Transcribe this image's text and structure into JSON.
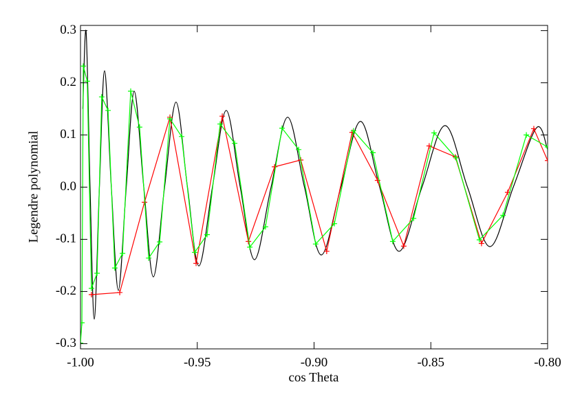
{
  "chart_data": {
    "type": "line",
    "xlabel": "cos Theta",
    "ylabel": "Legendre polynomial",
    "xlim": [
      -1.0,
      -0.8
    ],
    "ylim": [
      -0.31,
      0.31
    ],
    "xticks": [
      {
        "value": -1.0,
        "label": "-1.00"
      },
      {
        "value": -0.95,
        "label": "-0.95"
      },
      {
        "value": -0.9,
        "label": "-0.90"
      },
      {
        "value": -0.85,
        "label": "-0.85"
      },
      {
        "value": -0.8,
        "label": "-0.80"
      }
    ],
    "yticks": [
      -0.3,
      -0.2,
      -0.1,
      {
        "value": 0,
        "label": "0.0"
      },
      0.1,
      0.2,
      0.3
    ],
    "series": [
      {
        "color": "#000000",
        "markers": false,
        "x": [
          -0.999,
          -0.9976,
          -0.9959,
          -0.9941,
          -0.9919,
          -0.9897,
          -0.9868,
          -0.9838,
          -0.9804,
          -0.977,
          -0.9729,
          -0.9688,
          -0.964,
          -0.9591,
          -0.9542,
          -0.9493,
          -0.9435,
          -0.9376,
          -0.9316,
          -0.9255,
          -0.9184,
          -0.9113,
          -0.9041,
          -0.8969,
          -0.8885,
          -0.8801,
          -0.8719,
          -0.8636,
          -0.8538,
          -0.8439,
          -0.8343,
          -0.8247,
          -0.8147,
          -0.8047,
          -0.8
        ],
        "values": [
          0.15,
          0.298,
          0,
          -0.253,
          0,
          0.223,
          0,
          -0.198,
          0,
          0.184,
          0,
          -0.172,
          0,
          0.163,
          0,
          -0.151,
          0,
          0.147,
          0,
          -0.139,
          0,
          0.134,
          0,
          -0.13,
          0,
          0.126,
          0,
          -0.123,
          0,
          0.118,
          0,
          -0.114,
          0,
          0.114,
          0.072
        ]
      },
      {
        "color": "#ff0000",
        "markers": true,
        "x": [
          -0.9953,
          -0.9832,
          -0.9726,
          -0.9617,
          -0.9505,
          -0.9393,
          -0.9281,
          -0.9169,
          -0.9057,
          -0.8946,
          -0.8837,
          -0.8728,
          -0.8616,
          -0.8507,
          -0.8395,
          -0.8283,
          -0.8171,
          -0.8059,
          -0.8
        ],
        "values": [
          -0.206,
          -0.202,
          -0.029,
          0.134,
          -0.146,
          0.136,
          -0.104,
          0.039,
          0.052,
          -0.123,
          0.105,
          0.013,
          -0.113,
          0.079,
          0.058,
          -0.108,
          -0.01,
          0.112,
          0.051
        ]
      },
      {
        "color": "#00ff00",
        "markers": true,
        "x": [
          -1.0,
          -0.9994,
          -0.9988,
          -0.9971,
          -0.9953,
          -0.9929,
          -0.9909,
          -0.9882,
          -0.9853,
          -0.982,
          -0.9785,
          -0.9747,
          -0.9708,
          -0.9661,
          -0.9617,
          -0.9567,
          -0.9511,
          -0.9458,
          -0.9402,
          -0.934,
          -0.9275,
          -0.9208,
          -0.9137,
          -0.9066,
          -0.8993,
          -0.8913,
          -0.8831,
          -0.8748,
          -0.8663,
          -0.8574,
          -0.8486,
          -0.8392,
          -0.8292,
          -0.8191,
          -0.8091,
          -0.8
        ],
        "values": [
          -0.299,
          -0.26,
          0.232,
          0.203,
          -0.194,
          -0.165,
          0.173,
          0.147,
          -0.155,
          -0.127,
          0.184,
          0.115,
          -0.136,
          -0.105,
          0.131,
          0.097,
          -0.125,
          -0.091,
          0.121,
          0.084,
          -0.115,
          -0.076,
          0.113,
          0.072,
          -0.109,
          -0.07,
          0.108,
          0.066,
          -0.104,
          -0.06,
          0.104,
          0.056,
          -0.101,
          -0.054,
          0.1,
          0.077
        ]
      }
    ]
  }
}
